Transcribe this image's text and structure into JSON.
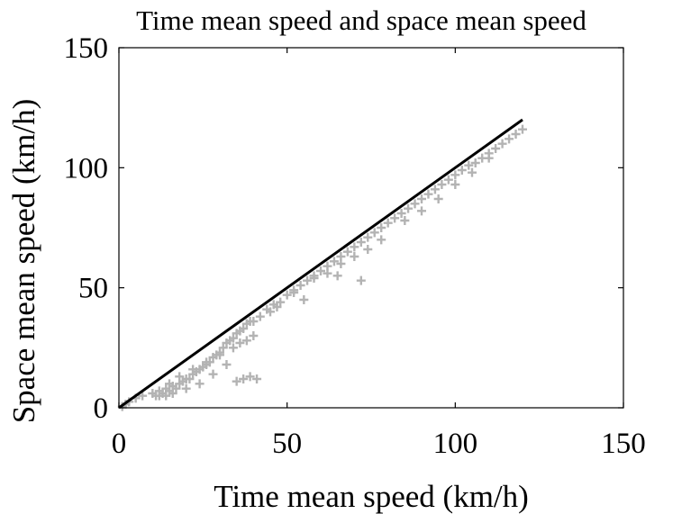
{
  "chart_data": {
    "type": "scatter",
    "title": "Time mean speed and space mean speed",
    "xlabel": "Time mean speed (km/h)",
    "ylabel": "Space mean speed (km/h)",
    "xlim": [
      0,
      150
    ],
    "ylim": [
      0,
      150
    ],
    "xticks": [
      0,
      50,
      100,
      150
    ],
    "yticks": [
      0,
      50,
      100,
      150
    ],
    "xtick_labels": [
      "0",
      "50",
      "100",
      "150"
    ],
    "ytick_labels": [
      "0",
      "50",
      "100",
      "150"
    ],
    "grid": false,
    "reference_line": {
      "x": [
        0,
        120
      ],
      "y": [
        0,
        120
      ],
      "color": "#000000"
    },
    "marker_color": "#b3b3b3",
    "series": [
      {
        "marker": "+",
        "x": [
          1,
          2,
          3,
          5,
          7,
          10,
          11,
          12,
          13,
          14,
          15,
          16,
          17,
          18,
          19,
          20,
          21,
          22,
          23,
          24,
          25,
          26,
          27,
          28,
          29,
          30,
          31,
          32,
          33,
          34,
          35,
          36,
          37,
          38,
          39,
          15,
          18,
          22,
          26,
          30,
          34,
          36,
          38,
          40,
          35,
          37,
          39,
          41,
          12,
          14,
          16,
          20,
          24,
          28,
          32,
          40,
          42,
          44,
          46,
          48,
          50,
          52,
          54,
          56,
          58,
          60,
          62,
          64,
          66,
          68,
          70,
          72,
          74,
          76,
          78,
          80,
          82,
          84,
          86,
          88,
          90,
          92,
          94,
          96,
          98,
          100,
          102,
          104,
          106,
          108,
          110,
          112,
          114,
          116,
          118,
          120,
          47,
          52,
          58,
          62,
          66,
          70,
          74,
          78,
          85,
          90,
          95,
          100,
          105,
          110,
          45,
          55,
          65,
          72
        ],
        "y": [
          0.5,
          1.5,
          2.5,
          4,
          5,
          6,
          5,
          7,
          6,
          8,
          7,
          9,
          8,
          10,
          11,
          12,
          12,
          14,
          15,
          16,
          17,
          18,
          19,
          21,
          22,
          23,
          25,
          27,
          28,
          29,
          31,
          32,
          33,
          35,
          36,
          10,
          13,
          16,
          19,
          22,
          25,
          27,
          28,
          30,
          11,
          12,
          13,
          12,
          5,
          5,
          6,
          8,
          10,
          14,
          18,
          36,
          38,
          41,
          43,
          44,
          47,
          49,
          51,
          53,
          55,
          57,
          59,
          61,
          63,
          65,
          67,
          69,
          71,
          73,
          75,
          77,
          79,
          81,
          83,
          85,
          87,
          89,
          91,
          93,
          95,
          97,
          99,
          101,
          102,
          104,
          106,
          108,
          110,
          112,
          114,
          116,
          42,
          48,
          54,
          56,
          60,
          63,
          66,
          70,
          78,
          82,
          87,
          93,
          98,
          104,
          40,
          45,
          55,
          53
        ]
      }
    ]
  }
}
